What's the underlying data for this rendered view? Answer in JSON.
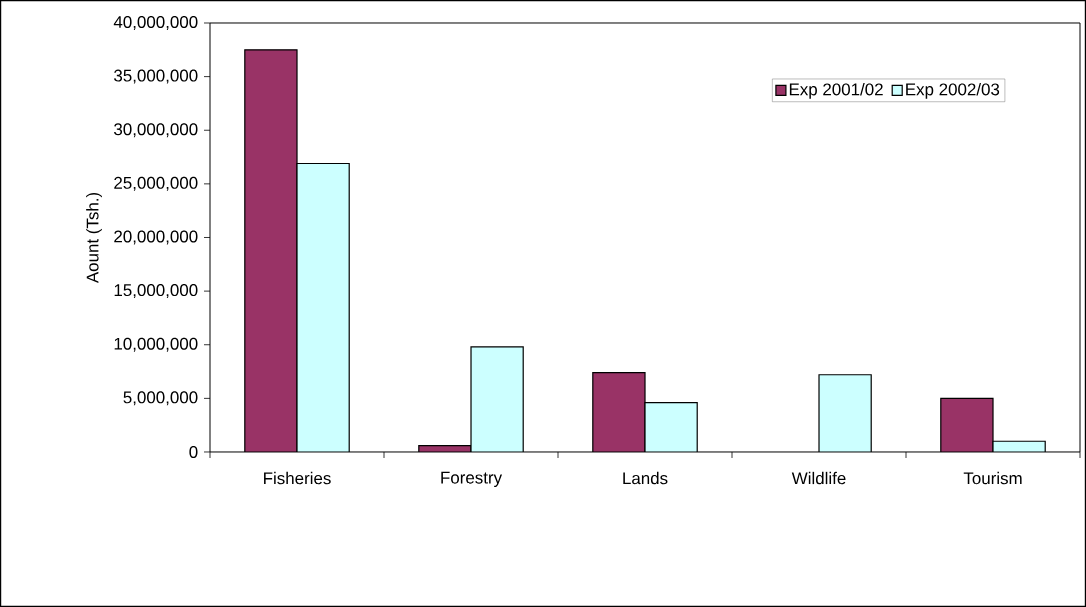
{
  "chart_data": {
    "type": "bar",
    "ylabel": "Aount (Tsh.)",
    "categories": [
      "Fisheries",
      "Forestry",
      "Lands",
      "Wildlife",
      "Tourism"
    ],
    "series": [
      {
        "name": "Exp 2001/02",
        "color": "#993366",
        "values": [
          37500000,
          600000,
          7400000,
          null,
          5000000
        ]
      },
      {
        "name": "Exp 2002/03",
        "color": "#ccffff",
        "values": [
          26900000,
          9800000,
          4600000,
          7200000,
          1000000
        ]
      }
    ],
    "ylim": [
      0,
      40000000
    ],
    "yticks": [
      {
        "value": 0,
        "label": "0"
      },
      {
        "value": 5000000,
        "label": "5,000,000"
      },
      {
        "value": 10000000,
        "label": "10,000,000"
      },
      {
        "value": 15000000,
        "label": "15,000,000"
      },
      {
        "value": 20000000,
        "label": "20,000,000"
      },
      {
        "value": 25000000,
        "label": "25,000,000"
      },
      {
        "value": 30000000,
        "label": "30,000,000"
      },
      {
        "value": 35000000,
        "label": "35,000,000"
      },
      {
        "value": 40000000,
        "label": "40,000,000"
      }
    ],
    "grid": false,
    "legend": "top right"
  }
}
